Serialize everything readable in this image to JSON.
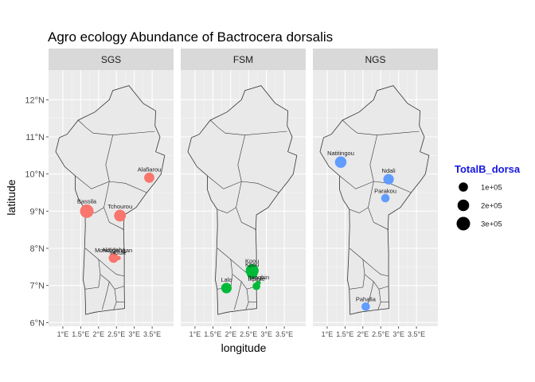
{
  "chart_data": {
    "type": "scatter",
    "title": "Agro ecology Abundance of Bactrocera dorsalis",
    "xlabel": "longitude",
    "ylabel": "latitude",
    "xlim": [
      0.6,
      4.1
    ],
    "ylim": [
      5.9,
      12.8
    ],
    "x_ticks": [
      {
        "value": 1,
        "label": "1°E"
      },
      {
        "value": 1.5,
        "label": "1.5°E"
      },
      {
        "value": 2,
        "label": "2°E"
      },
      {
        "value": 2.5,
        "label": "2.5°E"
      },
      {
        "value": 3,
        "label": "3°E"
      },
      {
        "value": 3.5,
        "label": "3.5°E"
      }
    ],
    "y_ticks": [
      {
        "value": 6,
        "label": "6°N"
      },
      {
        "value": 7,
        "label": "7°N"
      },
      {
        "value": 8,
        "label": "8°N"
      },
      {
        "value": 9,
        "label": "9°N"
      },
      {
        "value": 10,
        "label": "10°N"
      },
      {
        "value": 11,
        "label": "11°N"
      },
      {
        "value": 12,
        "label": "12°N"
      }
    ],
    "grid": true,
    "legend": {
      "title": "TotalB_dorsa",
      "position": "right",
      "entries": [
        {
          "label": "1e+05",
          "value": 100000
        },
        {
          "label": "2e+05",
          "value": 200000
        },
        {
          "label": "3e+05",
          "value": 300000
        }
      ]
    },
    "facets": [
      {
        "name": "SGS",
        "color": "#F8766D",
        "points": [
          {
            "label": "Alafiarou",
            "x": 3.42,
            "y": 9.9,
            "value": 140000
          },
          {
            "label": "Bassila",
            "x": 1.67,
            "y": 9.0,
            "value": 300000
          },
          {
            "label": "Tchourou",
            "x": 2.6,
            "y": 8.88,
            "value": 210000
          },
          {
            "label": "Mondjigangan",
            "x": 2.42,
            "y": 7.8,
            "value": 5000
          },
          {
            "label": "Akodeha",
            "x": 2.42,
            "y": 7.74,
            "value": 120000
          },
          {
            "label": "Houle",
            "x": 2.56,
            "y": 7.74,
            "value": 5000
          }
        ]
      },
      {
        "name": "FSM",
        "color": "#00BA38",
        "points": [
          {
            "label": "Kpou",
            "x": 2.6,
            "y": 7.4,
            "value": 260000
          },
          {
            "label": "Kpou",
            "x": 2.6,
            "y": 7.33,
            "value": 170000
          },
          {
            "label": "Lalo",
            "x": 1.88,
            "y": 6.93,
            "value": 150000
          },
          {
            "label": "Ikpinlé",
            "x": 2.72,
            "y": 6.98,
            "value": 60000
          },
          {
            "label": "Itaogbin",
            "x": 2.78,
            "y": 7.07,
            "value": 5000
          }
        ]
      },
      {
        "name": "NGS",
        "color": "#619CFF",
        "points": [
          {
            "label": "Natitingou",
            "x": 1.38,
            "y": 10.32,
            "value": 190000
          },
          {
            "label": "Ndali",
            "x": 2.72,
            "y": 9.86,
            "value": 150000
          },
          {
            "label": "Parakou",
            "x": 2.63,
            "y": 9.35,
            "value": 75000
          },
          {
            "label": "Pahalia",
            "x": 2.08,
            "y": 6.43,
            "value": 75000
          }
        ]
      }
    ]
  }
}
